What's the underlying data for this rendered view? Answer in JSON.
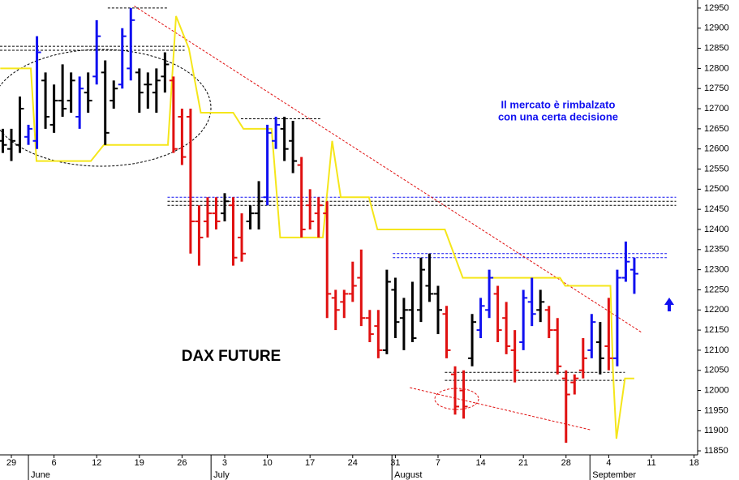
{
  "chart_data": {
    "type": "ohlc",
    "title": "DAX FUTURE",
    "annotation": [
      "Il mercato è rimbalzato",
      "con una certa decisione"
    ],
    "xlim": [
      -1.33,
      80.42
    ],
    "ylim": [
      11840,
      12970
    ],
    "yticks": [
      11850,
      11900,
      11950,
      12000,
      12050,
      12100,
      12150,
      12200,
      12250,
      12300,
      12350,
      12400,
      12450,
      12500,
      12550,
      12600,
      12650,
      12700,
      12750,
      12800,
      12850,
      12900,
      12950
    ],
    "xticks": [
      {
        "value": 0,
        "label": "29"
      },
      {
        "value": 5,
        "label": "6"
      },
      {
        "value": 10,
        "label": "12"
      },
      {
        "value": 15,
        "label": "19"
      },
      {
        "value": 20,
        "label": "26"
      },
      {
        "value": 25,
        "label": "3"
      },
      {
        "value": 30,
        "label": "10"
      },
      {
        "value": 35,
        "label": "17"
      },
      {
        "value": 40,
        "label": "24"
      },
      {
        "value": 45,
        "label": "31"
      },
      {
        "value": 50,
        "label": "7"
      },
      {
        "value": 55,
        "label": "14"
      },
      {
        "value": 60,
        "label": "21"
      },
      {
        "value": 65,
        "label": "28"
      },
      {
        "value": 70,
        "label": "4"
      },
      {
        "value": 75,
        "label": "11"
      },
      {
        "value": 80,
        "label": "18"
      }
    ],
    "months": [
      {
        "value": 2,
        "label": "June"
      },
      {
        "value": 23.4,
        "label": "July"
      },
      {
        "value": 44.6,
        "label": "August"
      },
      {
        "value": 67.8,
        "label": "September"
      }
    ],
    "bars": {
      "x": [
        -1,
        0,
        1,
        2,
        3,
        4,
        5,
        6,
        7,
        8,
        9,
        10,
        11,
        12,
        13,
        14,
        15,
        16,
        17,
        18,
        19,
        20,
        21,
        22,
        23,
        24,
        25,
        26,
        27,
        28,
        29,
        30,
        31,
        32,
        33,
        34,
        35,
        36,
        37,
        38,
        39,
        40,
        41,
        42,
        43,
        44,
        45,
        46,
        47,
        48,
        49,
        50,
        51,
        52,
        53,
        54,
        55,
        56,
        57,
        58,
        59,
        60,
        61,
        62,
        63,
        64,
        65,
        66,
        67,
        68,
        69,
        70,
        71,
        72,
        73
      ],
      "open": [
        12620,
        12600,
        12610,
        12630,
        12620,
        12770,
        12660,
        12720,
        12720,
        12680,
        12740,
        12780,
        12790,
        12720,
        12760,
        12800,
        12790,
        12760,
        12740,
        12780,
        12770,
        12680,
        12680,
        12420,
        12420,
        12440,
        12440,
        12460,
        12380,
        12420,
        12440,
        12480,
        12620,
        12650,
        12620,
        12560,
        12460,
        12440,
        12440,
        12230,
        12220,
        12240,
        12280,
        12180,
        12160,
        12100,
        12250,
        12180,
        12200,
        12200,
        12260,
        12240,
        12190,
        12040,
        12000,
        12080,
        12150,
        12200,
        12240,
        12180,
        12100,
        12120,
        12220,
        12200,
        12200,
        12150,
        12030,
        12020,
        12050,
        12100,
        12120,
        12110,
        12080,
        12280,
        12300
      ],
      "high": [
        12650,
        12650,
        12730,
        12660,
        12880,
        12790,
        12760,
        12810,
        12790,
        12780,
        12790,
        12920,
        12820,
        12770,
        12900,
        12950,
        12800,
        12790,
        12800,
        12840,
        12780,
        12700,
        12700,
        12460,
        12480,
        12480,
        12490,
        12480,
        12440,
        12460,
        12520,
        12660,
        12680,
        12680,
        12670,
        12580,
        12500,
        12480,
        12470,
        12250,
        12250,
        12320,
        12350,
        12200,
        12200,
        12300,
        12280,
        12230,
        12270,
        12330,
        12340,
        12260,
        12210,
        12060,
        12050,
        12190,
        12230,
        12300,
        12260,
        12220,
        12150,
        12250,
        12280,
        12250,
        12210,
        12180,
        12050,
        12040,
        12130,
        12190,
        12170,
        12230,
        12300,
        12370,
        12330
      ],
      "low": [
        12590,
        12570,
        12590,
        12610,
        12600,
        12650,
        12640,
        12680,
        12690,
        12650,
        12690,
        12760,
        12610,
        12700,
        12750,
        12770,
        12690,
        12700,
        12690,
        12740,
        12590,
        12560,
        12340,
        12310,
        12380,
        12400,
        12420,
        12310,
        12320,
        12400,
        12400,
        12460,
        12600,
        12570,
        12540,
        12380,
        12400,
        12380,
        12180,
        12150,
        12180,
        12220,
        12160,
        12120,
        12080,
        12090,
        12130,
        12100,
        12120,
        12170,
        12220,
        12140,
        12080,
        11940,
        11930,
        12060,
        12130,
        12180,
        12120,
        12090,
        12020,
        12100,
        12160,
        12170,
        12130,
        12040,
        11870,
        11990,
        12030,
        12080,
        12040,
        12050,
        12060,
        12270,
        12240
      ],
      "close": [
        12610,
        12620,
        12700,
        12650,
        12840,
        12680,
        12720,
        12700,
        12770,
        12750,
        12720,
        12880,
        12640,
        12750,
        12880,
        12920,
        12740,
        12760,
        12770,
        12810,
        12600,
        12580,
        12420,
        12380,
        12440,
        12420,
        12470,
        12330,
        12340,
        12440,
        12470,
        12640,
        12660,
        12600,
        12570,
        12400,
        12420,
        12460,
        12240,
        12200,
        12240,
        12260,
        12180,
        12140,
        12100,
        12270,
        12170,
        12200,
        12130,
        12300,
        12240,
        12200,
        12100,
        11960,
        11960,
        12170,
        12210,
        12280,
        12150,
        12110,
        12050,
        12230,
        12190,
        12220,
        12150,
        12060,
        11990,
        12030,
        12080,
        12170,
        12080,
        12080,
        12280,
        12320,
        12290
      ],
      "colors": [
        "#000000",
        "#000000",
        "#000000",
        "#1010f0",
        "#1010f0",
        "#000000",
        "#000000",
        "#000000",
        "#000000",
        "#1010f0",
        "#000000",
        "#1010f0",
        "#000000",
        "#000000",
        "#1010f0",
        "#1010f0",
        "#000000",
        "#000000",
        "#000000",
        "#000000",
        "#e01010",
        "#e01010",
        "#e01010",
        "#e01010",
        "#e01010",
        "#e01010",
        "#000000",
        "#e01010",
        "#e01010",
        "#000000",
        "#000000",
        "#1010f0",
        "#1010f0",
        "#000000",
        "#000000",
        "#e01010",
        "#e01010",
        "#e01010",
        "#e01010",
        "#e01010",
        "#e01010",
        "#e01010",
        "#e01010",
        "#e01010",
        "#e01010",
        "#000000",
        "#000000",
        "#000000",
        "#000000",
        "#000000",
        "#000000",
        "#000000",
        "#e01010",
        "#e01010",
        "#e01010",
        "#000000",
        "#1010f0",
        "#1010f0",
        "#e01010",
        "#e01010",
        "#e01010",
        "#1010f0",
        "#1010f0",
        "#000000",
        "#e01010",
        "#e01010",
        "#e01010",
        "#e01010",
        "#e01010",
        "#1010f0",
        "#000000",
        "#e01010",
        "#1010f0",
        "#1010f0",
        "#1010f0"
      ]
    },
    "stop_line": {
      "color": "#f5e61a",
      "x": [
        -1.3,
        2.28,
        2.95,
        9.32,
        10.84,
        18.35,
        19.3,
        20.8,
        22.2,
        26,
        27.2,
        30.5,
        31.5,
        36.5,
        37.6,
        38.6,
        41.9,
        42.9,
        50.8,
        52.9,
        64.3,
        64.9,
        70.2,
        70.5,
        70.9,
        71.9,
        73
      ],
      "values": [
        12800,
        12800,
        12570,
        12570,
        12610,
        12610,
        12930,
        12850,
        12690,
        12690,
        12650,
        12650,
        12380,
        12380,
        12620,
        12480,
        12480,
        12400,
        12400,
        12280,
        12280,
        12260,
        12260,
        12050,
        11880,
        12030,
        12030
      ]
    },
    "levels": [
      {
        "value": 12950,
        "x0": 11.3,
        "x1": 18.3,
        "color": "#000000"
      },
      {
        "value": 12855,
        "x0": -1.33,
        "x1": 20.3,
        "color": "#000000"
      },
      {
        "value": 12845,
        "x0": -1.33,
        "x1": 20.3,
        "color": "#000000"
      },
      {
        "value": 12675,
        "x0": 26.9,
        "x1": 36.2,
        "color": "#000000"
      },
      {
        "value": 12480,
        "x0": 18.3,
        "x1": 77.9,
        "color": "#1010f0"
      },
      {
        "value": 12470,
        "x0": 18.3,
        "x1": 77.9,
        "color": "#000000"
      },
      {
        "value": 12460,
        "x0": 18.3,
        "x1": 77.9,
        "color": "#000000"
      },
      {
        "value": 12340,
        "x0": 44.7,
        "x1": 76.8,
        "color": "#1010f0"
      },
      {
        "value": 12330,
        "x0": 44.7,
        "x1": 76.8,
        "color": "#1010f0"
      },
      {
        "value": 12045,
        "x0": 50.8,
        "x1": 71.9,
        "color": "#000000"
      },
      {
        "value": 12025,
        "x0": 50.8,
        "x1": 71.9,
        "color": "#000000"
      }
    ],
    "trend_lines": [
      {
        "x": [
          14.4,
          73.8
        ],
        "values": [
          12955,
          12145
        ],
        "color": "#e01010"
      },
      {
        "x": [
          46.7,
          67.9
        ],
        "values": [
          12007,
          11902
        ],
        "color": "#e01010"
      }
    ]
  }
}
